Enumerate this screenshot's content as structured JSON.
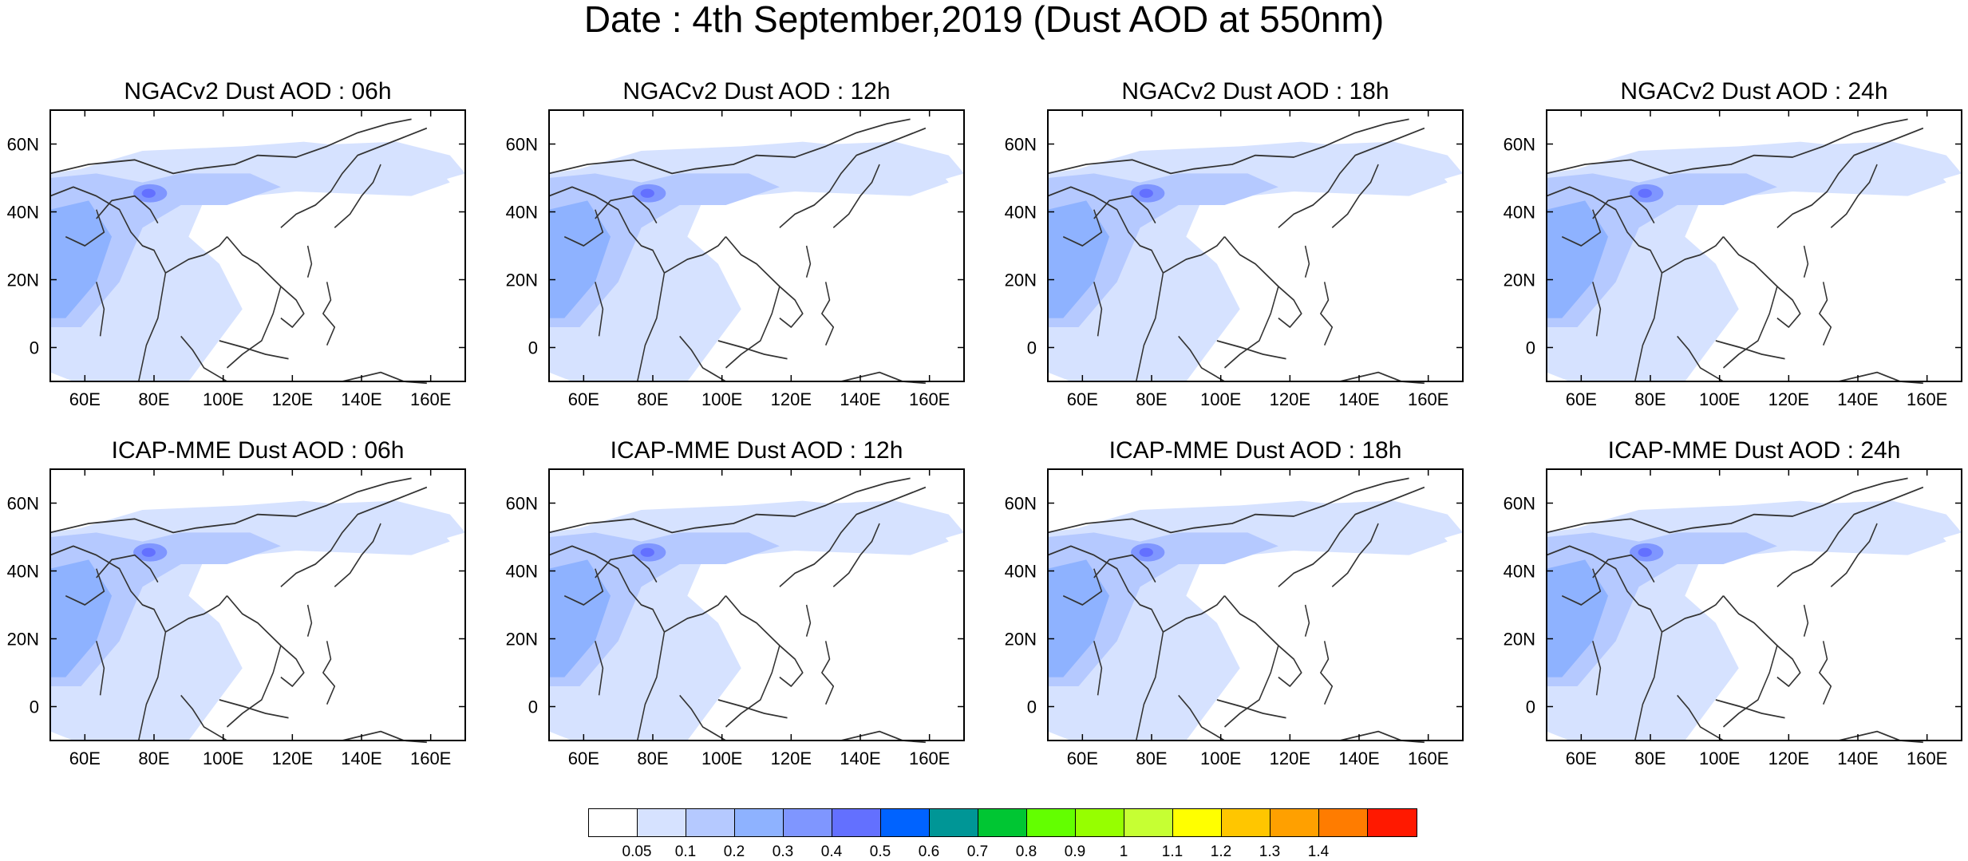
{
  "title": "Date : 4th September,2019 (Dust AOD at 550nm)",
  "panels": [
    {
      "title": "NGACv2 Dust AOD : 06h",
      "model": "NGACv2",
      "hour": "06h"
    },
    {
      "title": "NGACv2 Dust AOD : 12h",
      "model": "NGACv2",
      "hour": "12h"
    },
    {
      "title": "NGACv2 Dust AOD : 18h",
      "model": "NGACv2",
      "hour": "18h"
    },
    {
      "title": "NGACv2 Dust AOD : 24h",
      "model": "NGACv2",
      "hour": "24h"
    },
    {
      "title": "ICAP-MME Dust AOD : 06h",
      "model": "ICAP-MME",
      "hour": "06h"
    },
    {
      "title": "ICAP-MME Dust AOD : 12h",
      "model": "ICAP-MME",
      "hour": "12h"
    },
    {
      "title": "ICAP-MME Dust AOD : 18h",
      "model": "ICAP-MME",
      "hour": "18h"
    },
    {
      "title": "ICAP-MME Dust AOD : 24h",
      "model": "ICAP-MME",
      "hour": "24h"
    }
  ],
  "axes": {
    "lon_ticks": [
      "60E",
      "80E",
      "100E",
      "120E",
      "140E",
      "160E"
    ],
    "lat_ticks": [
      "60N",
      "40N",
      "20N",
      "0"
    ],
    "lon_values": [
      60,
      80,
      100,
      120,
      140,
      160
    ],
    "lat_values": [
      60,
      40,
      20,
      0
    ],
    "lon_range": [
      50,
      170
    ],
    "lat_range": [
      -10,
      70
    ]
  },
  "colorbar": {
    "labels": [
      "0.05",
      "0.1",
      "0.2",
      "0.3",
      "0.4",
      "0.5",
      "0.6",
      "0.7",
      "0.8",
      "0.9",
      "1",
      "1.1",
      "1.2",
      "1.3",
      "1.4"
    ],
    "colors": [
      "#ffffff",
      "#d6e2ff",
      "#b5c9ff",
      "#8eb2ff",
      "#7f96ff",
      "#6370ff",
      "#0063ff",
      "#009696",
      "#00c633",
      "#63ff00",
      "#96ff00",
      "#c6ff33",
      "#ffff00",
      "#ffc600",
      "#ffa000",
      "#ff7c00",
      "#ff1900"
    ]
  }
}
